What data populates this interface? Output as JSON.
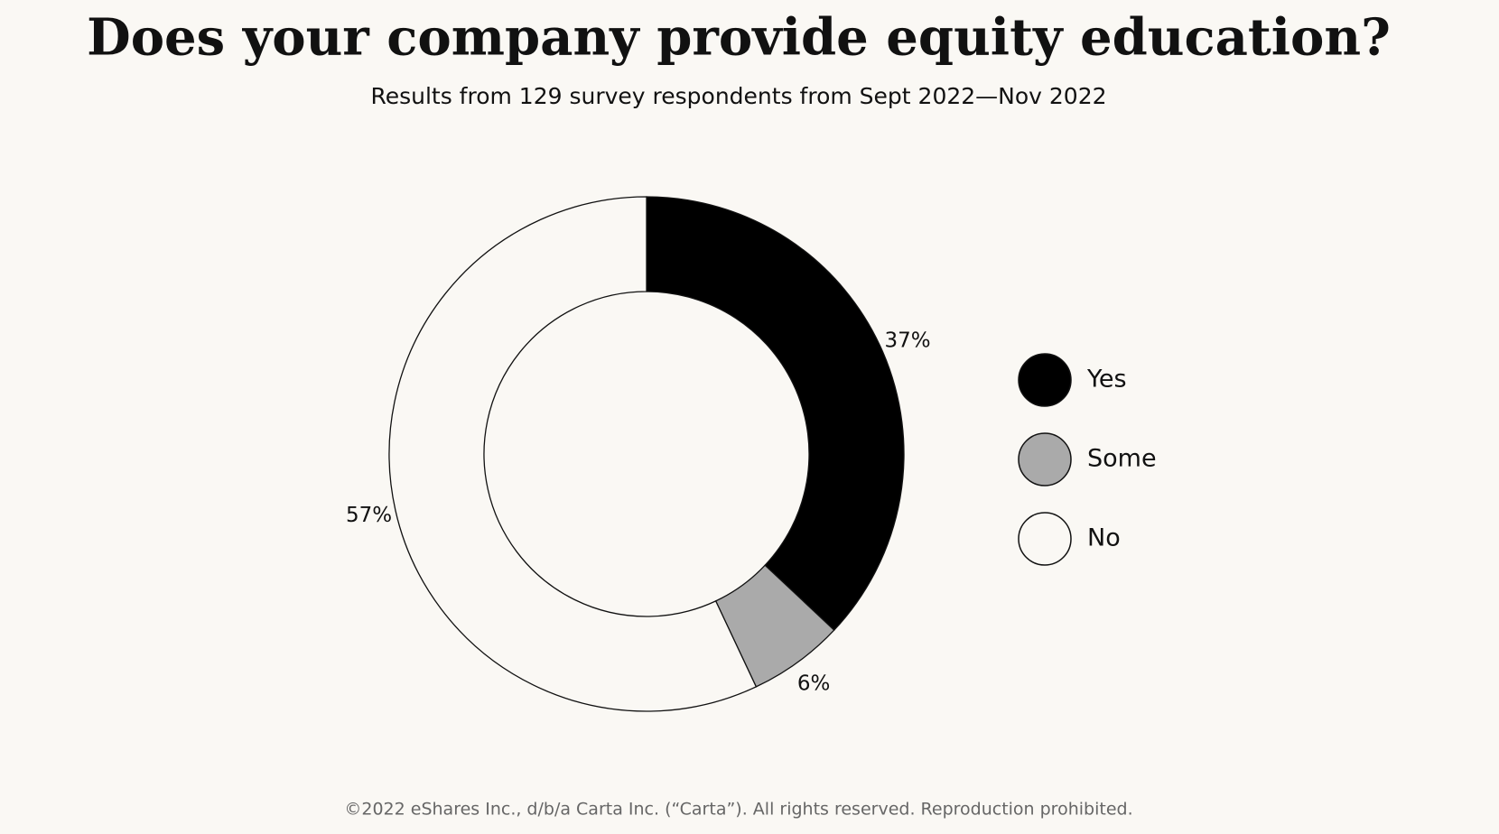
{
  "chart_data": {
    "type": "pie",
    "title": "Does your company provide equity education?",
    "subtitle": "Results from 129 survey respondents from Sept 2022—Nov 2022",
    "categories": [
      "Yes",
      "Some",
      "No"
    ],
    "values": [
      37,
      6,
      57
    ],
    "value_labels": [
      "37%",
      "6%",
      "57%"
    ],
    "colors": [
      "#000000",
      "#aaaaaa",
      "#faf8f4"
    ],
    "donut": true,
    "legend": "right",
    "footer": "©2022 eShares Inc., d/b/a Carta Inc. (“Carta”). All rights reserved. Reproduction prohibited."
  }
}
